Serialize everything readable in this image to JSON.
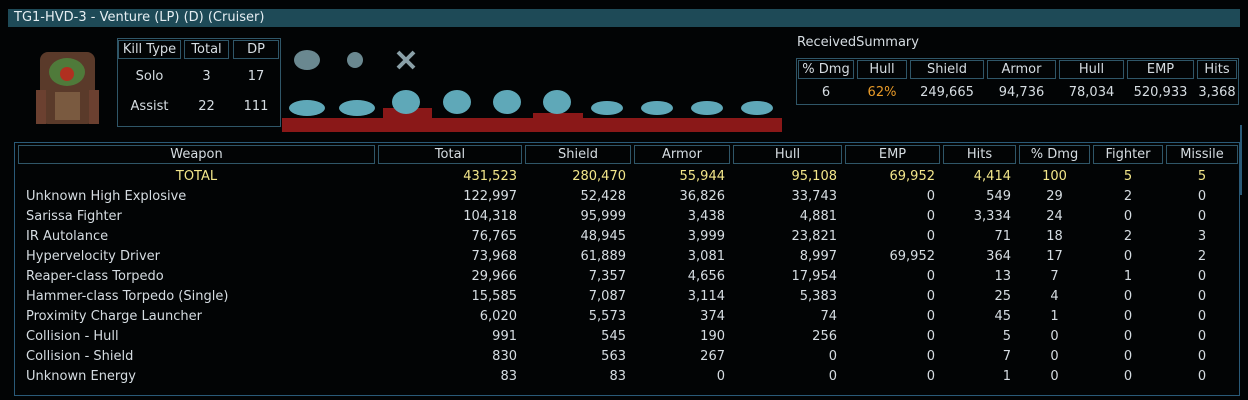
{
  "header": {
    "title": "TG1-HVD-3 - Venture (LP) (D) (Cruiser)"
  },
  "kills": {
    "headers": [
      "Kill Type",
      "Total",
      "DP"
    ],
    "rows": [
      [
        "Solo",
        "3",
        "17"
      ],
      [
        "Assist",
        "22",
        "111"
      ]
    ]
  },
  "received": {
    "title": "ReceivedSummary",
    "headers": [
      "% Dmg",
      "Hull",
      "Shield",
      "Armor",
      "Hull",
      "EMP",
      "Hits"
    ],
    "row": [
      "6",
      "62%",
      "249,665",
      "94,736",
      "78,034",
      "520,933",
      "3,368"
    ]
  },
  "weapons": {
    "headers": [
      "Weapon",
      "Total",
      "Shield",
      "Armor",
      "Hull",
      "EMP",
      "Hits",
      "% Dmg",
      "Fighter",
      "Missile"
    ],
    "rows": [
      [
        "TOTAL",
        "431,523",
        "280,470",
        "55,944",
        "95,108",
        "69,952",
        "4,414",
        "100",
        "5",
        "5"
      ],
      [
        "Unknown High Explosive",
        "122,997",
        "52,428",
        "36,826",
        "33,743",
        "0",
        "549",
        "29",
        "2",
        "0"
      ],
      [
        "Sarissa Fighter",
        "104,318",
        "95,999",
        "3,438",
        "4,881",
        "0",
        "3,334",
        "24",
        "0",
        "0"
      ],
      [
        "IR Autolance",
        "76,765",
        "48,945",
        "3,999",
        "23,821",
        "0",
        "71",
        "18",
        "2",
        "3"
      ],
      [
        "Hypervelocity Driver",
        "73,968",
        "61,889",
        "3,081",
        "8,997",
        "69,952",
        "364",
        "17",
        "0",
        "2"
      ],
      [
        "Reaper-class Torpedo",
        "29,966",
        "7,357",
        "4,656",
        "17,954",
        "0",
        "13",
        "7",
        "1",
        "0"
      ],
      [
        "Hammer-class Torpedo (Single)",
        "15,585",
        "7,087",
        "3,114",
        "5,383",
        "0",
        "25",
        "4",
        "0",
        "0"
      ],
      [
        "Proximity Charge Launcher",
        "6,020",
        "5,573",
        "374",
        "74",
        "0",
        "45",
        "1",
        "0",
        "0"
      ],
      [
        "Collision - Hull",
        "991",
        "545",
        "190",
        "256",
        "0",
        "5",
        "0",
        "0",
        "0"
      ],
      [
        "Collision - Shield",
        "830",
        "563",
        "267",
        "0",
        "0",
        "7",
        "0",
        "0",
        "0"
      ],
      [
        "Unknown Energy",
        "83",
        "83",
        "0",
        "0",
        "0",
        "1",
        "0",
        "0",
        "0"
      ]
    ]
  }
}
